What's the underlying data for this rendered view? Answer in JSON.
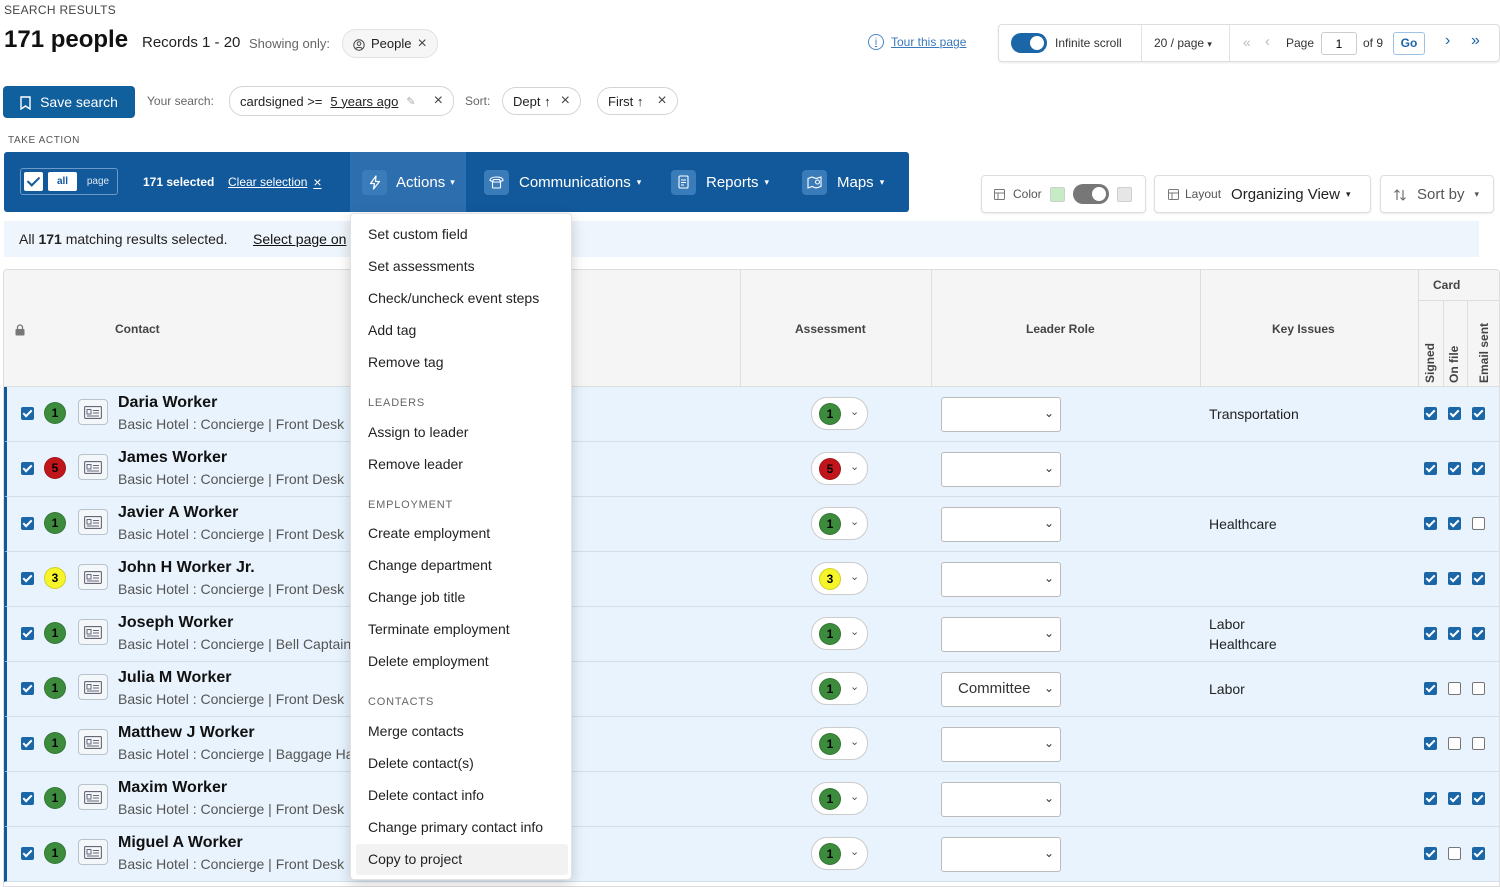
{
  "header": {
    "section_label": "SEARCH RESULTS",
    "count_title": "171 people",
    "records_range": "Records 1 - 20",
    "showing_only_label": "Showing only:",
    "filter_chip": "People",
    "tour_link": "Tour this page"
  },
  "pager": {
    "infinite_scroll_label": "Infinite scroll",
    "per_page": "20 / page",
    "page_label": "Page",
    "page_value": "1",
    "of_pages": "of 9",
    "go_label": "Go"
  },
  "search": {
    "save_label": "Save search",
    "your_search_label": "Your search:",
    "criteria_field": "cardsigned >=",
    "criteria_value": "5 years ago",
    "sort_label": "Sort:",
    "sort_chips": [
      "Dept ↑",
      "First ↑"
    ]
  },
  "take_action": {
    "label": "TAKE ACTION",
    "all_label": "all",
    "page_label": "page",
    "selected_count": "171 selected",
    "clear_selection": "Clear selection",
    "menus": [
      "Actions",
      "Communications",
      "Reports",
      "Maps"
    ]
  },
  "view_controls": {
    "color_label": "Color",
    "layout_label": "Layout",
    "layout_value": "Organizing View",
    "sort_by_label": "Sort by"
  },
  "banner": {
    "text_prefix": "All ",
    "count": "171",
    "text_suffix": " matching results selected.",
    "select_page_link": "Select page on"
  },
  "table": {
    "headers": {
      "contact": "Contact",
      "assessment": "Assessment",
      "leader_role": "Leader Role",
      "key_issues": "Key Issues",
      "card": "Card",
      "signed": "Signed",
      "on_file": "On file",
      "email_sent": "Email sent"
    },
    "rows": [
      {
        "name": "Daria Worker",
        "sub": "Basic Hotel : Concierge | Front Desk",
        "assessment": "1",
        "leader_role": "",
        "issues": [
          "Transportation"
        ],
        "signed": true,
        "on_file": true,
        "email_sent": true
      },
      {
        "name": "James Worker",
        "sub": "Basic Hotel : Concierge | Front Desk",
        "assessment": "5",
        "leader_role": "",
        "issues": [],
        "signed": true,
        "on_file": true,
        "email_sent": true
      },
      {
        "name": "Javier A Worker",
        "sub": "Basic Hotel : Concierge | Front Desk",
        "assessment": "1",
        "leader_role": "",
        "issues": [
          "Healthcare"
        ],
        "signed": true,
        "on_file": true,
        "email_sent": false
      },
      {
        "name": "John H Worker Jr.",
        "sub": "Basic Hotel : Concierge | Front Desk",
        "assessment": "3",
        "leader_role": "",
        "issues": [],
        "signed": true,
        "on_file": true,
        "email_sent": true
      },
      {
        "name": "Joseph Worker",
        "sub": "Basic Hotel : Concierge | Bell Captain",
        "assessment": "1",
        "leader_role": "",
        "issues": [
          "Labor",
          "Healthcare"
        ],
        "signed": true,
        "on_file": true,
        "email_sent": true
      },
      {
        "name": "Julia M Worker",
        "sub": "Basic Hotel : Concierge | Front Desk",
        "assessment": "1",
        "leader_role": "Committee",
        "issues": [
          "Labor"
        ],
        "signed": true,
        "on_file": false,
        "email_sent": false
      },
      {
        "name": "Matthew J Worker",
        "sub": "Basic Hotel : Concierge | Baggage Handler",
        "assessment": "1",
        "leader_role": "",
        "issues": [],
        "signed": true,
        "on_file": false,
        "email_sent": false
      },
      {
        "name": "Maxim Worker",
        "sub": "Basic Hotel : Concierge | Front Desk",
        "assessment": "1",
        "leader_role": "",
        "issues": [],
        "signed": true,
        "on_file": true,
        "email_sent": true
      },
      {
        "name": "Miguel A Worker",
        "sub": "Basic Hotel : Concierge | Front Desk",
        "assessment": "1",
        "leader_role": "",
        "issues": [],
        "signed": true,
        "on_file": false,
        "email_sent": true
      }
    ]
  },
  "badge_colors": {
    "1": "#3d8b3d",
    "3": "#f5f52a",
    "5": "#c0161b"
  },
  "dropdown": {
    "items_top": [
      "Set custom field",
      "Set assessments",
      "Check/uncheck event steps",
      "Add tag",
      "Remove tag"
    ],
    "leaders_head": "LEADERS",
    "leaders": [
      "Assign to leader",
      "Remove leader"
    ],
    "employment_head": "EMPLOYMENT",
    "employment": [
      "Create employment",
      "Change department",
      "Change job title",
      "Terminate employment",
      "Delete employment"
    ],
    "contacts_head": "CONTACTS",
    "contacts": [
      "Merge contacts",
      "Delete contact(s)",
      "Delete contact info",
      "Change primary contact info",
      "Copy to project"
    ]
  }
}
